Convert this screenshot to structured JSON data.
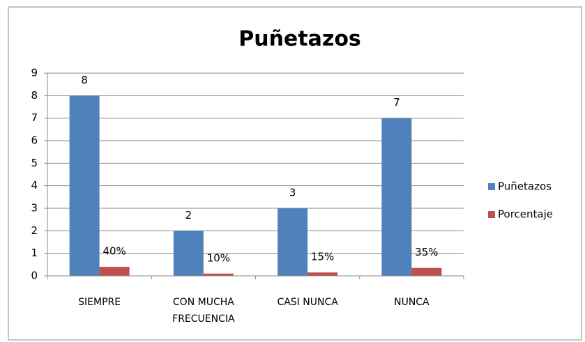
{
  "chart_data": {
    "type": "bar",
    "title": "Puñetazos",
    "categories": [
      "SIEMPRE",
      "CON MUCHA FRECUENCIA",
      "CASI NUNCA",
      "NUNCA"
    ],
    "series": [
      {
        "name": "Puñetazos",
        "color": "#4f81bd",
        "values": [
          8,
          2,
          3,
          7
        ]
      },
      {
        "name": "Porcentaje",
        "color": "#c0504d",
        "values": [
          0.4,
          0.1,
          0.15,
          0.35
        ],
        "value_labels": [
          "40%",
          "10%",
          "15%",
          "35%"
        ]
      }
    ],
    "ylim": [
      0,
      9
    ],
    "yticks": [
      0,
      1,
      2,
      3,
      4,
      5,
      6,
      7,
      8,
      9
    ],
    "grid": true,
    "legend": "right"
  }
}
